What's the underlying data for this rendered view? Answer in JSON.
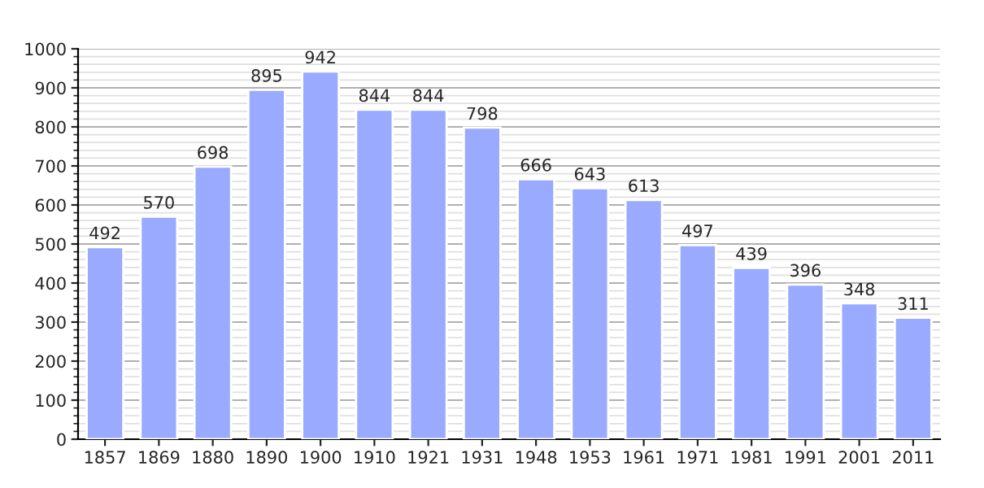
{
  "chart_data": {
    "type": "bar",
    "categories": [
      "1857",
      "1869",
      "1880",
      "1890",
      "1900",
      "1910",
      "1921",
      "1931",
      "1948",
      "1953",
      "1961",
      "1971",
      "1981",
      "1991",
      "2001",
      "2011"
    ],
    "values": [
      492,
      570,
      698,
      895,
      942,
      844,
      844,
      798,
      666,
      643,
      613,
      497,
      439,
      396,
      348,
      311
    ],
    "color": "#99aaff",
    "ylim": [
      0,
      1000
    ],
    "yticks": [
      0,
      100,
      200,
      300,
      400,
      500,
      600,
      700,
      800,
      900,
      1000
    ],
    "grid": "y",
    "data_labels": true
  }
}
